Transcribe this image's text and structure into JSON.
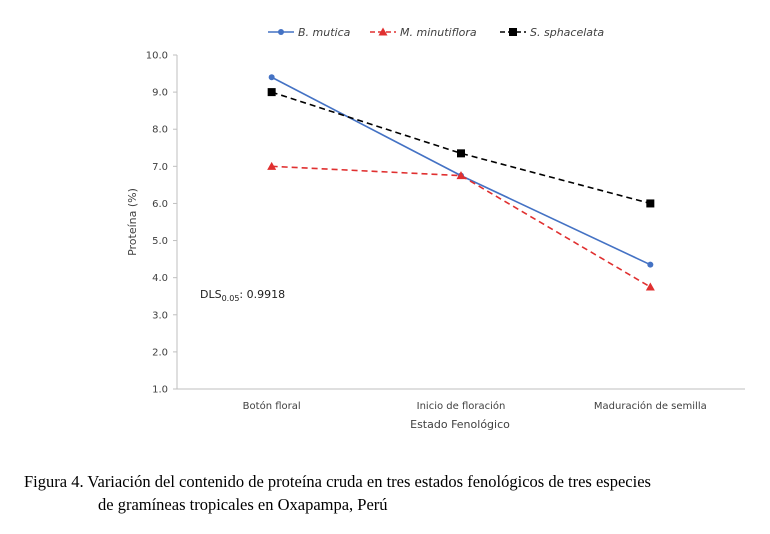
{
  "chart_data": {
    "type": "line",
    "categories": [
      "Botón floral",
      "Inicio de floración",
      "Maduración de semilla"
    ],
    "series": [
      {
        "name": "B. mutica",
        "values": [
          9.4,
          6.75,
          4.35
        ],
        "color": "#4472C4",
        "line": "solid",
        "marker": "circle"
      },
      {
        "name": "M. minutiflora",
        "values": [
          7.0,
          6.75,
          3.75
        ],
        "color": "#E03030",
        "line": "dashed",
        "marker": "triangle"
      },
      {
        "name": "S. sphacelata",
        "values": [
          9.0,
          7.35,
          6.0
        ],
        "color": "#000000",
        "line": "dashed",
        "marker": "square"
      }
    ],
    "xlabel": "Estado Fenológico",
    "ylabel": "Proteína (%)",
    "ylim": [
      1.0,
      10.0
    ],
    "yticks": [
      "1.0",
      "2.0",
      "3.0",
      "4.0",
      "5.0",
      "6.0",
      "7.0",
      "8.0",
      "9.0",
      "10.0"
    ],
    "grid": false,
    "legend_position": "top",
    "annotation": {
      "main": "DLS",
      "sub": "0.05",
      "rest": ": 0.9918"
    }
  },
  "caption": {
    "line1": "Figura 4. Variación del contenido de proteína cruda en tres estados fenológicos de tres especies",
    "line2": "de gramíneas tropicales en Oxapampa, Perú"
  }
}
